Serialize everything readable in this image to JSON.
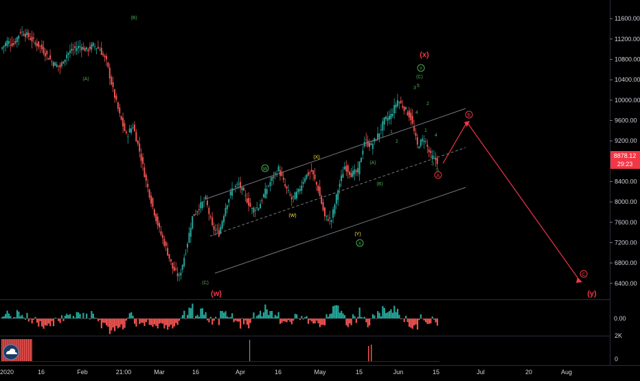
{
  "chart_data": {
    "type": "candlestick",
    "price_axis": {
      "ticks": [
        "11600.00",
        "11200.00",
        "10800.00",
        "10400.00",
        "10000.00",
        "9600.00",
        "9200.00",
        "8400.00",
        "8000.00",
        "7600.00",
        "7200.00",
        "6800.00",
        "6400.00"
      ],
      "range": [
        6100,
        11900
      ]
    },
    "time_axis": {
      "labels": [
        "2020",
        "16",
        "Feb",
        "21:00",
        "Mar",
        "16",
        "Apr",
        "16",
        "May",
        "15",
        "Jun",
        "15",
        "Jul",
        "20",
        "Aug"
      ]
    },
    "last_price": {
      "value": "8878.12",
      "countdown": "29:23",
      "color": "#f23645"
    },
    "oscillator": {
      "zero_label": "0.00",
      "up_color": "#26a69a",
      "down_color": "#ef5350"
    },
    "volume": {
      "ticks": [
        "2K",
        "0"
      ],
      "color": "#ef5350"
    },
    "price_path": [
      [
        0,
        11000
      ],
      [
        1,
        11150
      ],
      [
        2,
        11100
      ],
      [
        3,
        11350
      ],
      [
        4,
        11280
      ],
      [
        5,
        11150
      ],
      [
        6,
        11050
      ],
      [
        7,
        10880
      ],
      [
        8,
        10720
      ],
      [
        9,
        10650
      ],
      [
        10,
        10900
      ],
      [
        11,
        11000
      ],
      [
        12,
        11060
      ],
      [
        13,
        10980
      ],
      [
        14,
        11080
      ],
      [
        15,
        11000
      ],
      [
        16,
        10750
      ],
      [
        17,
        10200
      ],
      [
        18,
        9700
      ],
      [
        19,
        9300
      ],
      [
        20,
        9500
      ],
      [
        21,
        9000
      ],
      [
        22,
        8400
      ],
      [
        23,
        7900
      ],
      [
        24,
        7450
      ],
      [
        25,
        7100
      ],
      [
        26,
        6700
      ],
      [
        27,
        6520
      ],
      [
        28,
        7050
      ],
      [
        29,
        7700
      ],
      [
        30,
        7900
      ],
      [
        31,
        8050
      ],
      [
        32,
        7500
      ],
      [
        33,
        7380
      ],
      [
        34,
        7900
      ],
      [
        35,
        8250
      ],
      [
        36,
        8350
      ],
      [
        37,
        8100
      ],
      [
        38,
        7850
      ],
      [
        39,
        7900
      ],
      [
        40,
        8200
      ],
      [
        41,
        8450
      ],
      [
        42,
        8650
      ],
      [
        43,
        8300
      ],
      [
        44,
        8050
      ],
      [
        45,
        8200
      ],
      [
        46,
        8500
      ],
      [
        47,
        8600
      ],
      [
        48,
        8250
      ],
      [
        49,
        7700
      ],
      [
        50,
        7650
      ],
      [
        51,
        8250
      ],
      [
        52,
        8700
      ],
      [
        53,
        8550
      ],
      [
        54,
        8600
      ],
      [
        55,
        9200
      ],
      [
        56,
        9100
      ],
      [
        57,
        9300
      ],
      [
        58,
        9600
      ],
      [
        59,
        9700
      ],
      [
        60,
        10000
      ],
      [
        61,
        9850
      ],
      [
        62,
        9650
      ],
      [
        63,
        9100
      ],
      [
        64,
        9250
      ],
      [
        65,
        8900
      ],
      [
        66,
        8800
      ]
    ],
    "wave_labels": [
      {
        "text": "(A)",
        "color": "#4caf50",
        "circled": false
      },
      {
        "text": "(B)",
        "color": "#4caf50",
        "circled": false
      },
      {
        "text": "(C)",
        "color": "#4caf50",
        "circled": false
      },
      {
        "text": "(w)",
        "color": "#f23645",
        "circled": false
      },
      {
        "text": "W",
        "color": "#4caf50",
        "circled": true
      },
      {
        "text": "(W)",
        "color": "#ffeb3b",
        "circled": false
      },
      {
        "text": "(X)",
        "color": "#ffeb3b",
        "circled": false
      },
      {
        "text": "(Y)",
        "color": "#ffeb3b",
        "circled": false
      },
      {
        "text": "X",
        "color": "#4caf50",
        "circled": true
      },
      {
        "text": "(A)",
        "color": "#4caf50",
        "circled": false
      },
      {
        "text": "(B)",
        "color": "#4caf50",
        "circled": false
      },
      {
        "text": "1",
        "color": "#4caf50",
        "circled": false
      },
      {
        "text": "2",
        "color": "#4caf50",
        "circled": false
      },
      {
        "text": "3",
        "color": "#4caf50",
        "circled": false
      },
      {
        "text": "4",
        "color": "#4caf50",
        "circled": false
      },
      {
        "text": "5",
        "color": "#4caf50",
        "circled": false
      },
      {
        "text": "(C)",
        "color": "#4caf50",
        "circled": false
      },
      {
        "text": "Y",
        "color": "#4caf50",
        "circled": true
      },
      {
        "text": "(x)",
        "color": "#f23645",
        "circled": false
      },
      {
        "text": "2",
        "color": "#4caf50",
        "circled": false
      },
      {
        "text": "1",
        "color": "#4caf50",
        "circled": false
      },
      {
        "text": "4",
        "color": "#4caf50",
        "circled": false
      },
      {
        "text": "3",
        "color": "#4caf50",
        "circled": false
      },
      {
        "text": "5",
        "color": "#4caf50",
        "circled": false
      },
      {
        "text": "A",
        "color": "#f23645",
        "circled": true
      },
      {
        "text": "B",
        "color": "#f23645",
        "circled": true
      },
      {
        "text": "C",
        "color": "#f23645",
        "circled": true
      },
      {
        "text": "(y)",
        "color": "#f23645",
        "circled": false
      }
    ],
    "projection": {
      "color": "#f23645",
      "points": [
        [
          8878,
          "now"
        ],
        [
          9620,
          "B"
        ],
        [
          6400,
          "C"
        ]
      ]
    },
    "channel": {
      "color": "#787b86"
    }
  },
  "logo": {
    "icon": "cloud-icon"
  }
}
